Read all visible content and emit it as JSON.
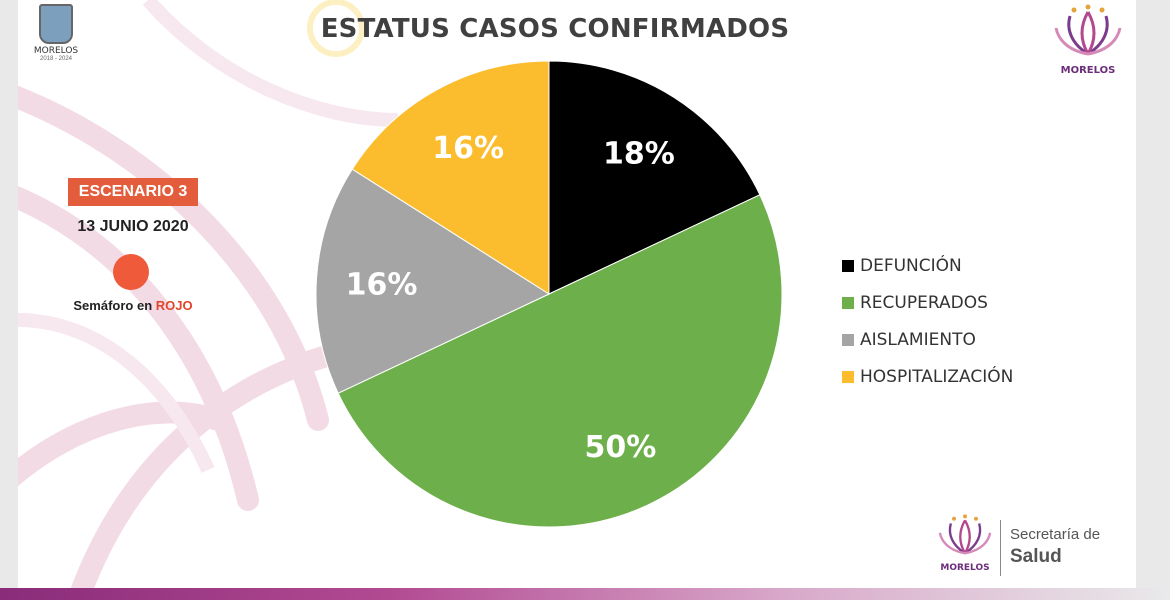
{
  "title": "ESTATUS CASOS CONFIRMADOS",
  "scenario": {
    "badge": "ESCENARIO 3",
    "date": "13 JUNIO 2020",
    "semaforo_prefix": "Semáforo en ",
    "semaforo_color_text": "ROJO",
    "semaforo_color": "#ef5a3b"
  },
  "logos": {
    "top_left_text": "MORELOS",
    "top_left_years": "2018 - 2024",
    "top_right_text": "MORELOS",
    "bottom_text": "MORELOS",
    "bottom_secretaria": "Secretaría de",
    "bottom_salud": "Salud"
  },
  "chart_data": {
    "type": "pie",
    "title": "ESTATUS CASOS CONFIRMADOS",
    "slices": [
      {
        "name": "DEFUNCIÓN",
        "value": 18,
        "label": "18%",
        "color": "#000000"
      },
      {
        "name": "RECUPERADOS",
        "value": 50,
        "label": "50%",
        "color": "#6db04b"
      },
      {
        "name": "AISLAMIENTO",
        "value": 16,
        "label": "16%",
        "color": "#a5a5a5"
      },
      {
        "name": "HOSPITALIZACIÓN",
        "value": 16,
        "label": "16%",
        "color": "#fbbd2e"
      }
    ],
    "legend_position": "right"
  }
}
